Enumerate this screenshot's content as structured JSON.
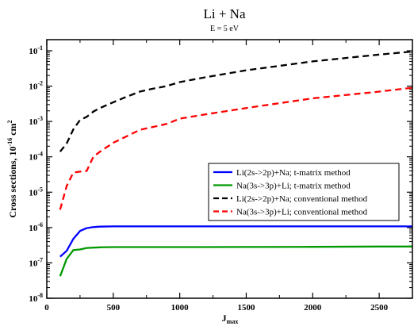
{
  "chart_data": {
    "type": "line",
    "title": "Li + Na",
    "subtitle": "E = 5 eV",
    "xlabel": {
      "main": "J",
      "sub": "max"
    },
    "ylabel": {
      "main": "Cross sections, 10",
      "exp1": "-16",
      "unit": " cm",
      "exp2": "2"
    },
    "xscale": "linear",
    "yscale": "log",
    "xlim": [
      0,
      2750
    ],
    "ylim": [
      1e-08,
      0.2
    ],
    "xticks": [
      0,
      500,
      1000,
      1500,
      2000,
      2500
    ],
    "xtick_labels": [
      "0",
      "500",
      "1000",
      "1500",
      "2000",
      "2500"
    ],
    "yticks": [
      1e-08,
      1e-07,
      1e-06,
      1e-05,
      0.0001,
      0.001,
      0.01,
      0.1
    ],
    "ytick_labels": [
      {
        "base": "10",
        "exp": "-8"
      },
      {
        "base": "10",
        "exp": "-7"
      },
      {
        "base": "10",
        "exp": "-6"
      },
      {
        "base": "10",
        "exp": "-5"
      },
      {
        "base": "10",
        "exp": "-4"
      },
      {
        "base": "10",
        "exp": "-3"
      },
      {
        "base": "10",
        "exp": "-2"
      },
      {
        "base": "10",
        "exp": "-1"
      }
    ],
    "grid": false,
    "legend_position": "center-right",
    "series": [
      {
        "name": "Li(2s->2p)+Na; t-matrix method",
        "color": "#0000ff",
        "dash": "solid",
        "x": [
          100,
          150,
          200,
          250,
          300,
          350,
          400,
          500,
          700,
          1000,
          1500,
          2000,
          2500,
          2750
        ],
        "y": [
          1.5e-07,
          2.2e-07,
          4.8e-07,
          8e-07,
          9.6e-07,
          1.03e-06,
          1.06e-06,
          1.08e-06,
          1.08e-06,
          1.08e-06,
          1.08e-06,
          1.08e-06,
          1.08e-06,
          1.08e-06
        ]
      },
      {
        "name": "Na(3s->3p)+Li; t-matrix method",
        "color": "#009900",
        "dash": "solid",
        "x": [
          100,
          150,
          200,
          250,
          300,
          400,
          500,
          1000,
          1500,
          2000,
          2500,
          2750
        ],
        "y": [
          4.2e-08,
          1.3e-07,
          2.3e-07,
          2.4e-07,
          2.65e-07,
          2.75e-07,
          2.8e-07,
          2.8e-07,
          2.82e-07,
          2.85e-07,
          2.9e-07,
          2.9e-07
        ]
      },
      {
        "name": "Li(2s->2p)+Na; conventional method",
        "color": "#000000",
        "dash": "dashed",
        "x": [
          100,
          150,
          200,
          250,
          300,
          350,
          400,
          500,
          600,
          700,
          800,
          900,
          1000,
          1200,
          1500,
          2000,
          2500,
          2750
        ],
        "y": [
          0.00014,
          0.00024,
          0.0006,
          0.0011,
          0.00135,
          0.0019,
          0.0024,
          0.0035,
          0.005,
          0.007,
          0.0085,
          0.01,
          0.013,
          0.018,
          0.028,
          0.05,
          0.078,
          0.095
        ]
      },
      {
        "name": "Na(3s->3p)+Li; conventional method",
        "color": "#ff0000",
        "dash": "dashed",
        "x": [
          100,
          150,
          200,
          250,
          300,
          350,
          400,
          500,
          600,
          700,
          800,
          900,
          1000,
          1200,
          1500,
          2000,
          2500,
          2750
        ],
        "y": [
          3.2e-06,
          1.5e-05,
          3.6e-05,
          3.8e-05,
          4e-05,
          0.0001,
          0.00014,
          0.00025,
          0.00038,
          0.00058,
          0.0007,
          0.00085,
          0.0012,
          0.0016,
          0.0024,
          0.0045,
          0.007,
          0.009
        ]
      }
    ]
  }
}
